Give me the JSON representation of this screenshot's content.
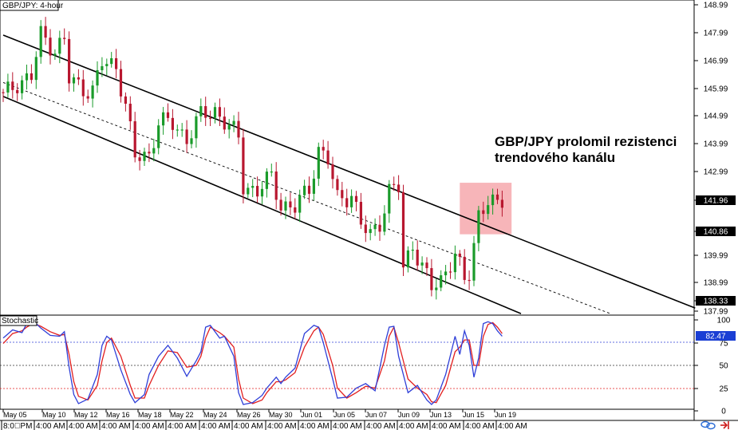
{
  "header": {
    "symbol_label": "GBP/JPY: 4-hour"
  },
  "indicator": {
    "name": "Stochastic",
    "current_value": "82.47",
    "levels": [
      80,
      50,
      20
    ],
    "ticks": [
      "100",
      "75",
      "50",
      "25",
      "0"
    ]
  },
  "annotation": {
    "line1": "GBP/JPY prolomil rezistenci",
    "line2": "trendového kanálu"
  },
  "price_axis": {
    "ticks": [
      "148.99",
      "147.99",
      "146.99",
      "145.99",
      "144.99",
      "143.99",
      "142.99",
      "141.96",
      "140.86",
      "139.99",
      "138.99",
      "138.33",
      "137.99"
    ],
    "current_price": "141.96",
    "marker_price": "140.86",
    "low_price": "138.33"
  },
  "time_axis": {
    "dates": [
      "May 05",
      "May 10",
      "May 12",
      "May 16",
      "May 18",
      "May 22",
      "May 24",
      "May 26",
      "May 30",
      "Jun 01",
      "Jun 05",
      "Jun 07",
      "Jun 09",
      "Jun 13",
      "Jun 15",
      "Jun 19"
    ],
    "times": [
      "8:0⃣PM",
      "4:00 AM",
      "4:00 AM",
      "4:00 AM",
      "4:00 AM",
      "4:00 AM",
      "4:00 AM",
      "4:00 AM",
      "4:00 AM",
      "4:00 AM",
      "4:00 AM",
      "4:00 AM",
      "4:00 AM",
      "4:00 AM",
      "4:00 AM",
      "4:00 AM"
    ]
  },
  "colors": {
    "up_candle": "#1a9b2a",
    "down_candle": "#b8172f",
    "highlight_box": "#f6a8ad",
    "stoch_k": "#2f3fd8",
    "stoch_d": "#e21f1f",
    "price_tag": "#000000",
    "current_tag": "#1a3fd4"
  },
  "chart_data": {
    "type": "candlestick",
    "title": "GBP/JPY: 4-hour",
    "ylim": [
      137.85,
      149.2
    ],
    "channel": {
      "upper": [
        [
          0,
          147.9
        ],
        [
          147,
          138.1
        ]
      ],
      "middle": [
        [
          0,
          146.2
        ],
        [
          129,
          137.9
        ]
      ],
      "lower": [
        [
          0,
          145.7
        ],
        [
          110,
          137.9
        ]
      ]
    },
    "highlight": {
      "x": [
        97,
        108
      ],
      "y": [
        140.75,
        142.6
      ]
    },
    "anchors": [
      [
        0,
        145.7
      ],
      [
        3,
        146.2
      ],
      [
        6,
        146.4
      ],
      [
        8,
        147.9
      ],
      [
        11,
        147.4
      ],
      [
        13,
        147.7
      ],
      [
        14,
        146.3
      ],
      [
        17,
        146.0
      ],
      [
        19,
        145.9
      ],
      [
        21,
        146.9
      ],
      [
        24,
        146.8
      ],
      [
        26,
        145.4
      ],
      [
        28,
        143.5
      ],
      [
        31,
        143.6
      ],
      [
        33,
        144.8
      ],
      [
        36,
        144.7
      ],
      [
        39,
        144.2
      ],
      [
        42,
        145.0
      ],
      [
        45,
        145.2
      ],
      [
        48,
        144.6
      ],
      [
        50,
        144.2
      ],
      [
        51,
        142.5
      ],
      [
        54,
        142.3
      ],
      [
        57,
        142.8
      ],
      [
        59,
        141.8
      ],
      [
        62,
        141.7
      ],
      [
        65,
        142.4
      ],
      [
        67,
        143.8
      ],
      [
        69,
        143.4
      ],
      [
        71,
        142.0
      ],
      [
        74,
        142.2
      ],
      [
        76,
        141.1
      ],
      [
        78,
        140.7
      ],
      [
        80,
        141.2
      ],
      [
        82,
        142.3
      ],
      [
        84,
        142.4
      ],
      [
        85,
        139.5
      ],
      [
        87,
        140.4
      ],
      [
        89,
        139.6
      ],
      [
        91,
        138.8
      ],
      [
        93,
        139.1
      ],
      [
        96,
        140.1
      ],
      [
        98,
        139.0
      ],
      [
        99,
        139.3
      ],
      [
        101,
        141.5
      ],
      [
        103,
        142.0
      ],
      [
        105,
        141.7
      ],
      [
        106,
        141.9
      ]
    ],
    "stochastic": {
      "k": [
        [
          0,
          80
        ],
        [
          2,
          89
        ],
        [
          4,
          86
        ],
        [
          5,
          96
        ],
        [
          6,
          94
        ],
        [
          7,
          96
        ],
        [
          8,
          91
        ],
        [
          10,
          83
        ],
        [
          12,
          82
        ],
        [
          13,
          87
        ],
        [
          14,
          48
        ],
        [
          15,
          18
        ],
        [
          16,
          8
        ],
        [
          18,
          13
        ],
        [
          20,
          40
        ],
        [
          21,
          72
        ],
        [
          22,
          82
        ],
        [
          23,
          78
        ],
        [
          25,
          45
        ],
        [
          27,
          18
        ],
        [
          28,
          9
        ],
        [
          30,
          18
        ],
        [
          31,
          40
        ],
        [
          33,
          60
        ],
        [
          35,
          72
        ],
        [
          37,
          58
        ],
        [
          39,
          38
        ],
        [
          41,
          55
        ],
        [
          42,
          65
        ],
        [
          43,
          92
        ],
        [
          44,
          94
        ],
        [
          46,
          80
        ],
        [
          47,
          82
        ],
        [
          49,
          60
        ],
        [
          50,
          20
        ],
        [
          51,
          7
        ],
        [
          53,
          9
        ],
        [
          55,
          17
        ],
        [
          56,
          25
        ],
        [
          58,
          37
        ],
        [
          59,
          30
        ],
        [
          60,
          37
        ],
        [
          62,
          47
        ],
        [
          64,
          85
        ],
        [
          66,
          94
        ],
        [
          67,
          92
        ],
        [
          68,
          75
        ],
        [
          70,
          35
        ],
        [
          71,
          14
        ],
        [
          73,
          15
        ],
        [
          75,
          25
        ],
        [
          77,
          30
        ],
        [
          79,
          22
        ],
        [
          81,
          72
        ],
        [
          82,
          92
        ],
        [
          83,
          93
        ],
        [
          84,
          60
        ],
        [
          86,
          20
        ],
        [
          88,
          28
        ],
        [
          90,
          12
        ],
        [
          91,
          7
        ],
        [
          92,
          12
        ],
        [
          94,
          40
        ],
        [
          96,
          82
        ],
        [
          97,
          62
        ],
        [
          98,
          88
        ],
        [
          99,
          72
        ],
        [
          100,
          37
        ],
        [
          101,
          58
        ],
        [
          102,
          96
        ],
        [
          103,
          98
        ],
        [
          104,
          96
        ],
        [
          105,
          88
        ],
        [
          106,
          82
        ]
      ],
      "d": [
        [
          0,
          74
        ],
        [
          2,
          85
        ],
        [
          4,
          88
        ],
        [
          5,
          92
        ],
        [
          6,
          95
        ],
        [
          7,
          95
        ],
        [
          8,
          93
        ],
        [
          10,
          87
        ],
        [
          12,
          83
        ],
        [
          13,
          84
        ],
        [
          14,
          62
        ],
        [
          15,
          32
        ],
        [
          16,
          16
        ],
        [
          18,
          12
        ],
        [
          20,
          28
        ],
        [
          21,
          55
        ],
        [
          22,
          75
        ],
        [
          23,
          80
        ],
        [
          25,
          60
        ],
        [
          27,
          28
        ],
        [
          28,
          14
        ],
        [
          30,
          14
        ],
        [
          31,
          28
        ],
        [
          33,
          50
        ],
        [
          35,
          66
        ],
        [
          37,
          64
        ],
        [
          39,
          48
        ],
        [
          41,
          50
        ],
        [
          42,
          60
        ],
        [
          43,
          80
        ],
        [
          44,
          92
        ],
        [
          46,
          86
        ],
        [
          47,
          82
        ],
        [
          49,
          70
        ],
        [
          50,
          35
        ],
        [
          51,
          14
        ],
        [
          53,
          8
        ],
        [
          55,
          12
        ],
        [
          56,
          20
        ],
        [
          58,
          32
        ],
        [
          59,
          32
        ],
        [
          60,
          34
        ],
        [
          62,
          42
        ],
        [
          64,
          70
        ],
        [
          66,
          88
        ],
        [
          67,
          92
        ],
        [
          68,
          84
        ],
        [
          70,
          50
        ],
        [
          71,
          25
        ],
        [
          73,
          14
        ],
        [
          75,
          20
        ],
        [
          77,
          27
        ],
        [
          79,
          25
        ],
        [
          81,
          55
        ],
        [
          82,
          82
        ],
        [
          83,
          92
        ],
        [
          84,
          75
        ],
        [
          86,
          35
        ],
        [
          88,
          25
        ],
        [
          90,
          18
        ],
        [
          91,
          10
        ],
        [
          92,
          9
        ],
        [
          94,
          28
        ],
        [
          96,
          65
        ],
        [
          97,
          70
        ],
        [
          98,
          78
        ],
        [
          99,
          78
        ],
        [
          100,
          50
        ],
        [
          101,
          50
        ],
        [
          102,
          82
        ],
        [
          103,
          95
        ],
        [
          104,
          97
        ],
        [
          105,
          92
        ],
        [
          106,
          85
        ]
      ]
    }
  }
}
